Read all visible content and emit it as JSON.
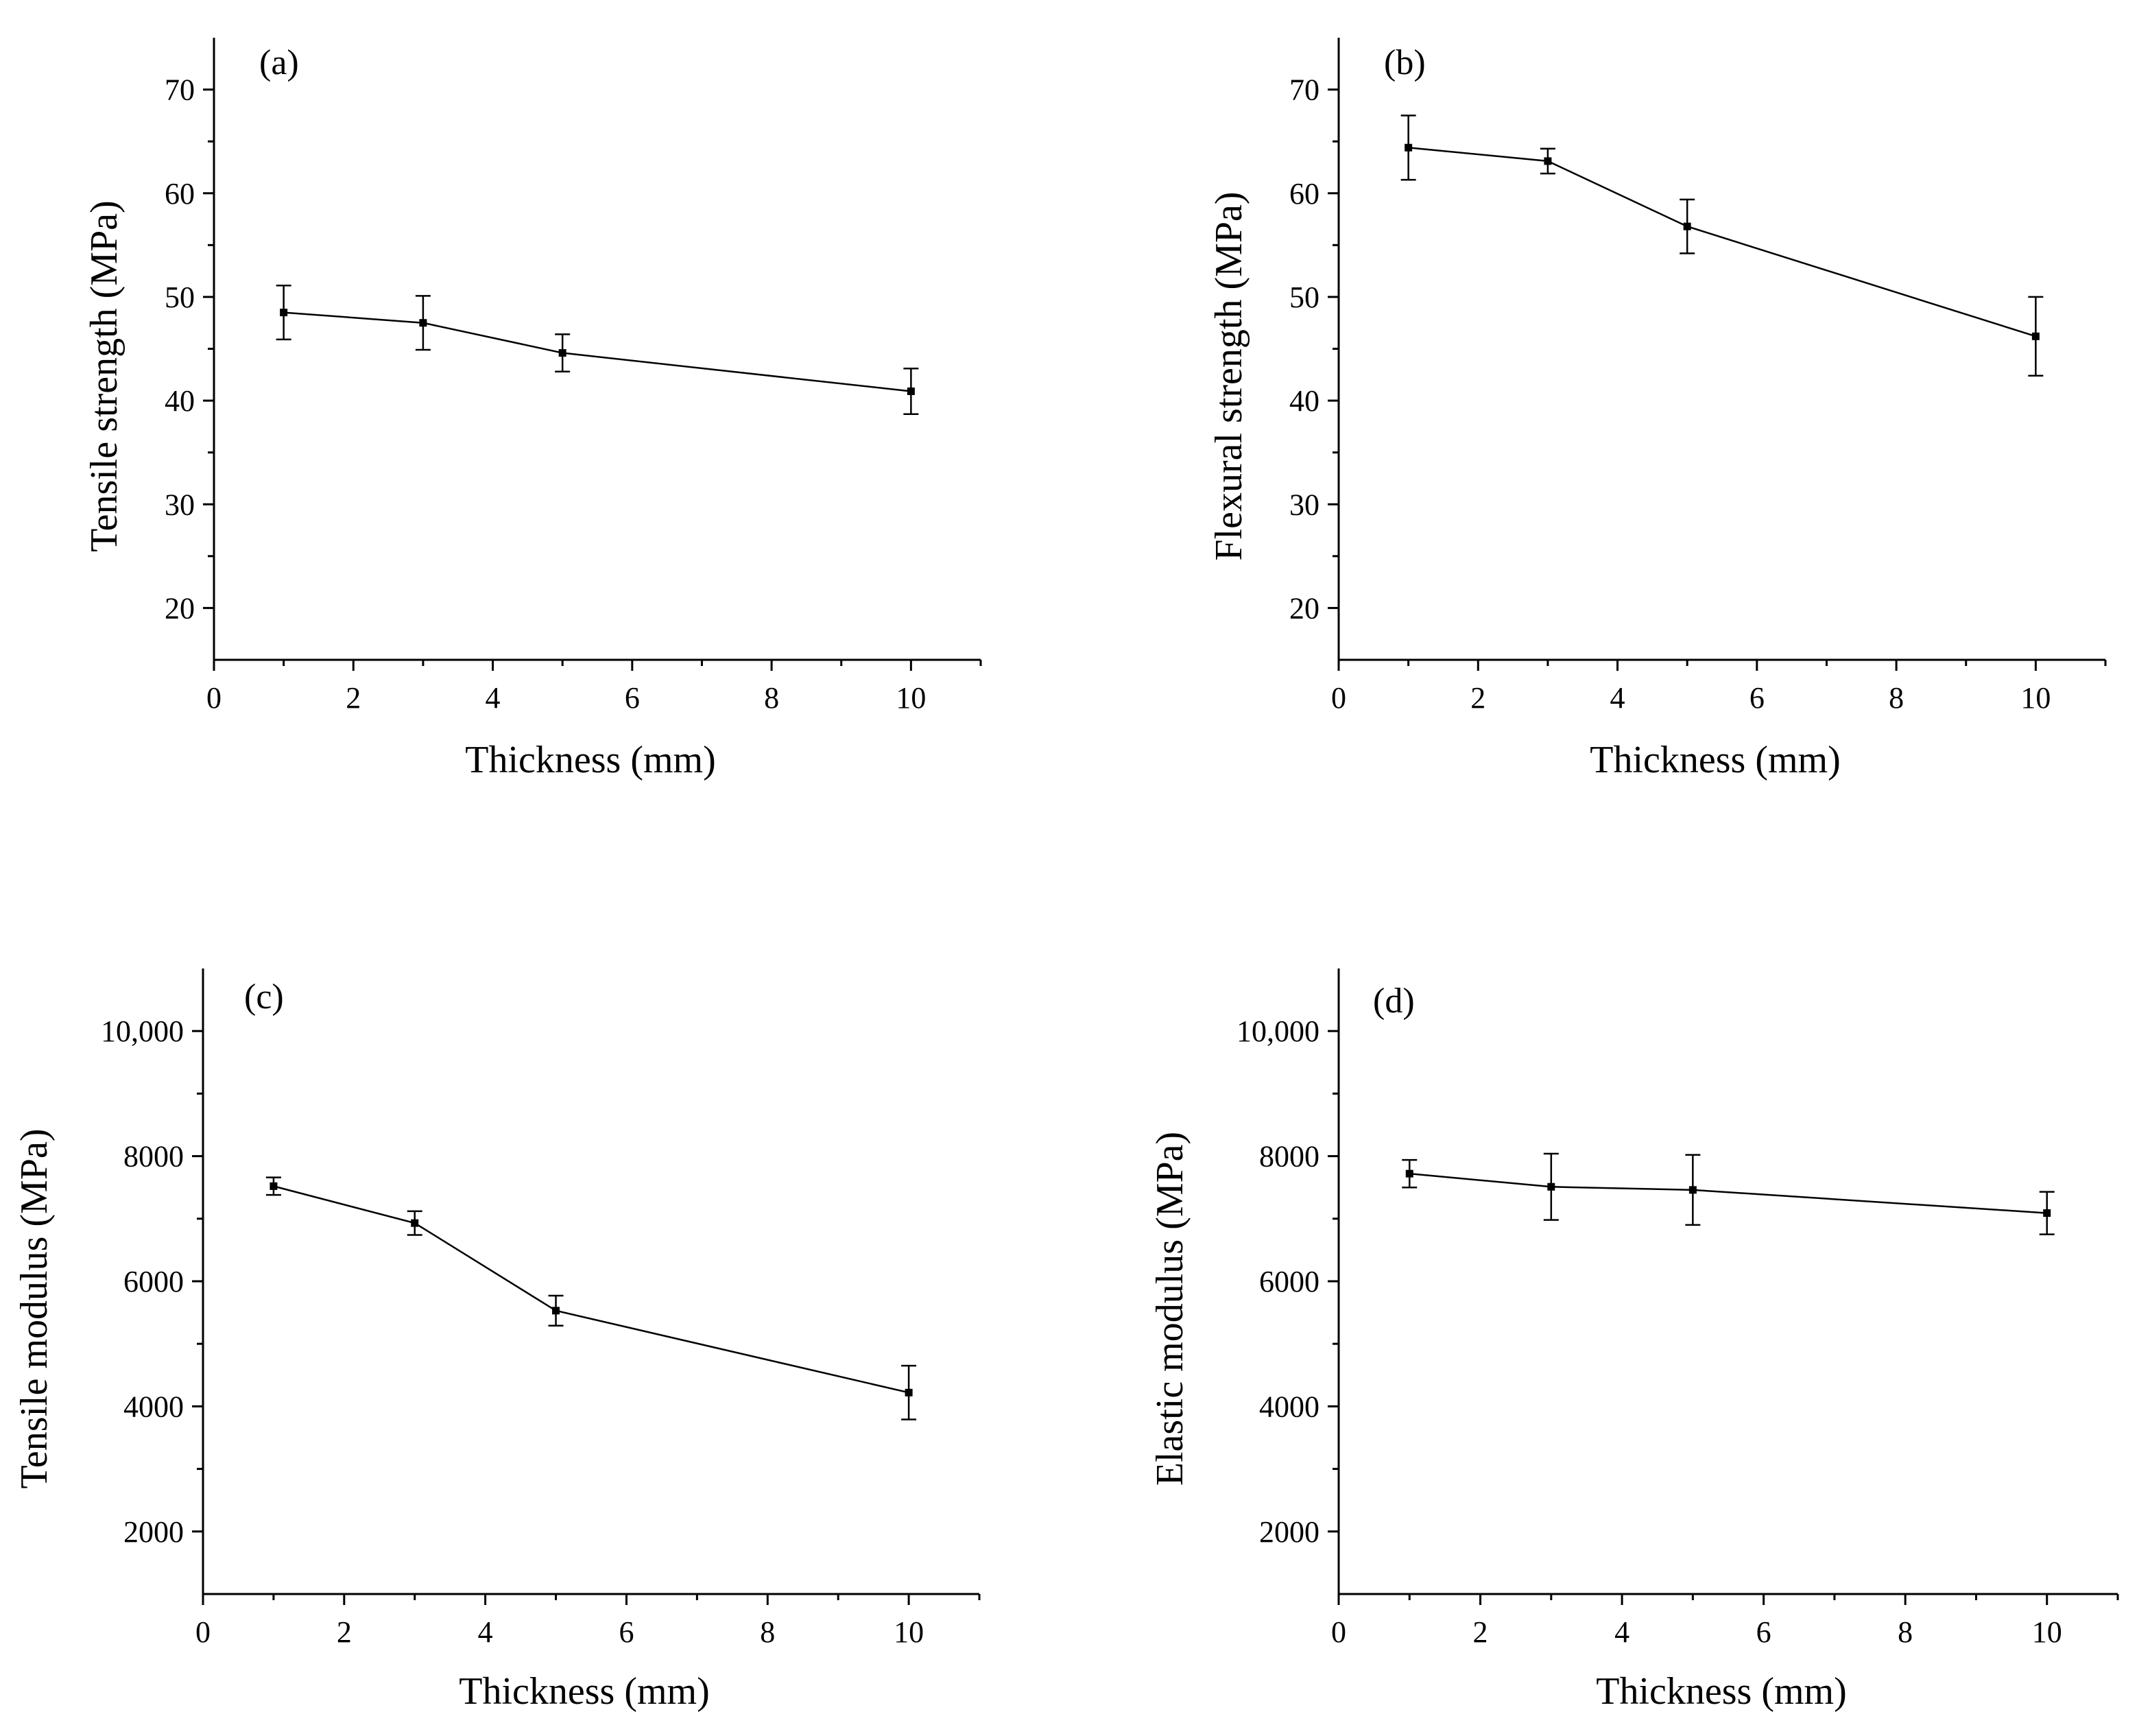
{
  "chart_data": [
    {
      "panel": "(a)",
      "type": "line",
      "xlabel": "Thickness (mm)",
      "ylabel": "Tensile strength (MPa)",
      "xlim": [
        0,
        11
      ],
      "ylim": [
        15,
        75
      ],
      "xticks": [
        0,
        2,
        4,
        6,
        8,
        10
      ],
      "xtick_labels": [
        "0",
        "2",
        "4",
        "6",
        "8",
        "10"
      ],
      "yticks": [
        20,
        30,
        40,
        50,
        60,
        70
      ],
      "ytick_labels": [
        "20",
        "30",
        "40",
        "50",
        "60",
        "70"
      ],
      "x": [
        1,
        3,
        5,
        10
      ],
      "y": [
        48.5,
        47.5,
        44.6,
        40.9
      ],
      "err": [
        2.6,
        2.6,
        1.8,
        2.2
      ]
    },
    {
      "panel": "(b)",
      "type": "line",
      "xlabel": "Thickness (mm)",
      "ylabel": "Flexural strength (MPa)",
      "xlim": [
        0,
        11
      ],
      "ylim": [
        15,
        75
      ],
      "xticks": [
        0,
        2,
        4,
        6,
        8,
        10
      ],
      "xtick_labels": [
        "0",
        "2",
        "4",
        "6",
        "8",
        "10"
      ],
      "yticks": [
        20,
        30,
        40,
        50,
        60,
        70
      ],
      "ytick_labels": [
        "20",
        "30",
        "40",
        "50",
        "60",
        "70"
      ],
      "x": [
        1,
        3,
        5,
        10
      ],
      "y": [
        64.4,
        63.1,
        56.8,
        46.2
      ],
      "err": [
        3.1,
        1.2,
        2.6,
        3.8
      ]
    },
    {
      "panel": "(c)",
      "type": "line",
      "xlabel": "Thickness (mm)",
      "ylabel": "Tensile modulus (MPa)",
      "xlim": [
        0,
        11
      ],
      "ylim": [
        1000,
        11000
      ],
      "xticks": [
        0,
        2,
        4,
        6,
        8,
        10
      ],
      "xtick_labels": [
        "0",
        "2",
        "4",
        "6",
        "8",
        "10"
      ],
      "yticks": [
        2000,
        4000,
        6000,
        8000,
        10000
      ],
      "ytick_labels": [
        "2000",
        "4000",
        "6000",
        "8000",
        "10,000"
      ],
      "x": [
        1,
        3,
        5,
        10
      ],
      "y": [
        7520,
        6930,
        5530,
        4220
      ],
      "err": [
        140,
        190,
        240,
        430
      ]
    },
    {
      "panel": "(d)",
      "type": "line",
      "xlabel": "Thickness (mm)",
      "ylabel": "Elastic modulus (MPa)",
      "xlim": [
        0,
        11
      ],
      "ylim": [
        1000,
        11000
      ],
      "xticks": [
        0,
        2,
        4,
        6,
        8,
        10
      ],
      "xtick_labels": [
        "0",
        "2",
        "4",
        "6",
        "8",
        "10"
      ],
      "yticks": [
        2000,
        4000,
        6000,
        8000,
        10000
      ],
      "ytick_labels": [
        "2000",
        "4000",
        "6000",
        "8000",
        "10,000"
      ],
      "x": [
        1,
        3,
        5,
        10
      ],
      "y": [
        7720,
        7510,
        7460,
        7090
      ],
      "err": [
        220,
        530,
        560,
        340
      ]
    }
  ]
}
